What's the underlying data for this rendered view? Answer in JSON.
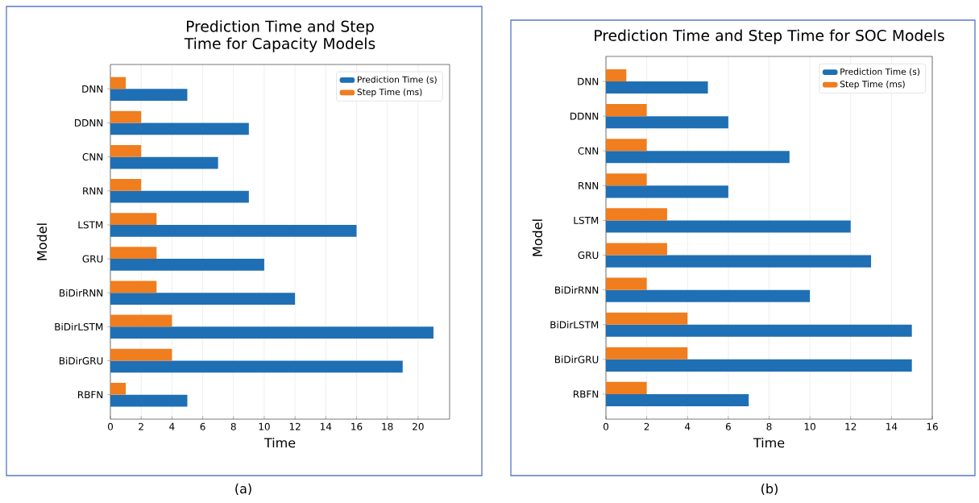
{
  "chart_data": [
    {
      "type": "bar",
      "orientation": "horizontal",
      "title": "Prediction Time and Step Time for Capacity Models",
      "xlabel": "Time",
      "ylabel": "Model",
      "categories": [
        "DNN",
        "DDNN",
        "CNN",
        "RNN",
        "LSTM",
        "GRU",
        "BiDirRNN",
        "BiDirLSTM",
        "BiDirGRU",
        "RBFN"
      ],
      "series": [
        {
          "name": "Prediction Time (s)",
          "color": "#1f6fb4",
          "values": [
            5,
            9,
            7,
            9,
            16,
            10,
            12,
            21,
            19,
            5
          ]
        },
        {
          "name": "Step Time (ms)",
          "color": "#f07d1e",
          "values": [
            1,
            2,
            2,
            2,
            3,
            3,
            3,
            4,
            4,
            1
          ]
        }
      ],
      "xlim": [
        0,
        22.05
      ],
      "xticks": [
        0,
        2,
        4,
        6,
        8,
        10,
        12,
        14,
        16,
        18,
        20
      ],
      "grid": "x",
      "legend": "top right",
      "annotations": [
        "(a)"
      ]
    },
    {
      "type": "bar",
      "orientation": "horizontal",
      "title": "Prediction Time and Step Time for SOC Models",
      "xlabel": "Time",
      "ylabel": "Model",
      "categories": [
        "DNN",
        "DDNN",
        "CNN",
        "RNN",
        "LSTM",
        "GRU",
        "BiDirRNN",
        "BiDirLSTM",
        "BiDirGRU",
        "RBFN"
      ],
      "series": [
        {
          "name": "Prediction Time (s)",
          "color": "#1f6fb4",
          "values": [
            5,
            6,
            9,
            6,
            12,
            13,
            10,
            15,
            15,
            7
          ]
        },
        {
          "name": "Step Time (ms)",
          "color": "#f07d1e",
          "values": [
            1,
            2,
            2,
            2,
            3,
            3,
            2,
            4,
            4,
            2
          ]
        }
      ],
      "xlim": [
        0,
        16
      ],
      "xticks": [
        0,
        2,
        4,
        6,
        8,
        10,
        12,
        14,
        16
      ],
      "grid": "x",
      "legend": "top right",
      "annotations": [
        "(b)"
      ]
    }
  ]
}
